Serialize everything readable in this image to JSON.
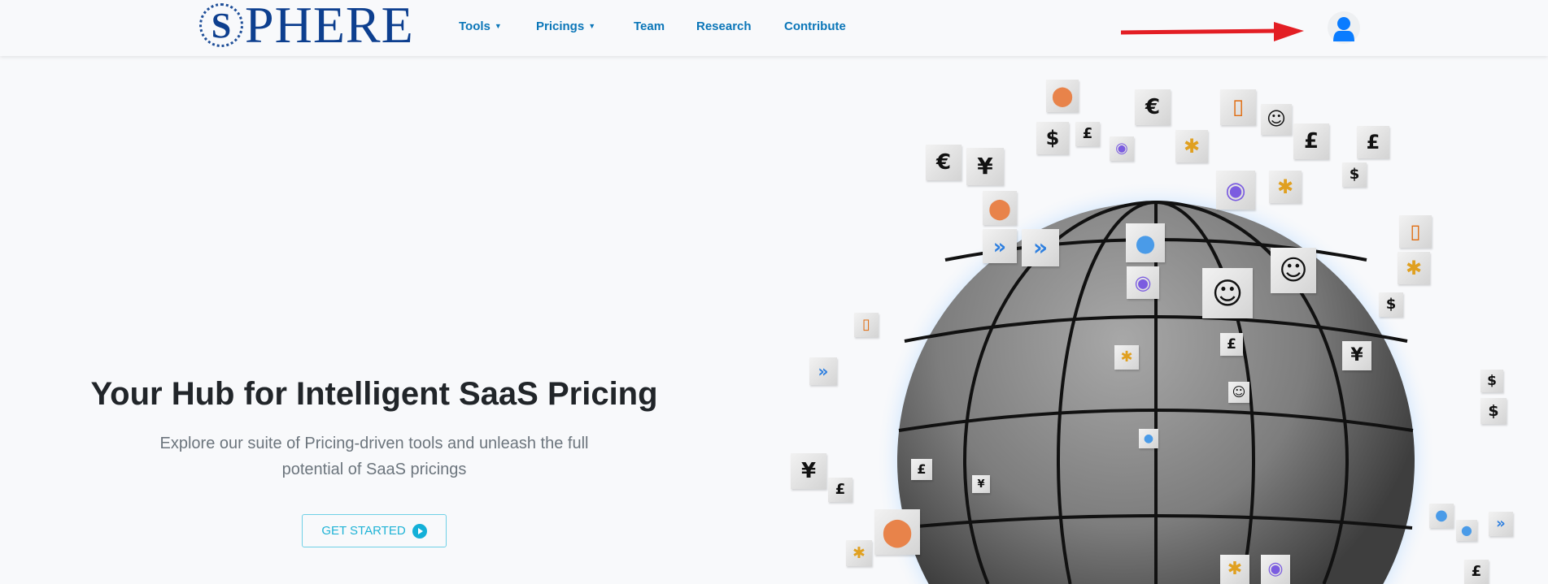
{
  "brand": {
    "logo_letter": "S",
    "logo_rest": "PHERE"
  },
  "nav": {
    "items": [
      {
        "label": "Tools",
        "dropdown": true
      },
      {
        "label": "Pricings",
        "dropdown": true
      },
      {
        "label": "Team",
        "dropdown": false
      },
      {
        "label": "Research",
        "dropdown": false
      },
      {
        "label": "Contribute",
        "dropdown": false
      }
    ],
    "user_icon": "user-icon",
    "annotation_arrow_color": "#e31e24"
  },
  "hero": {
    "title": "Your Hub for Intelligent SaaS Pricing",
    "subtitle_line1": "Explore our suite of Pricing-driven tools and unleash the full",
    "subtitle_line2": "potential of SaaS pricings",
    "cta_label": "GET STARTED"
  },
  "colors": {
    "brand": "#0d3f8f",
    "nav_link": "#0b76b8",
    "accent": "#14b0d8",
    "user_icon": "#0a7cff"
  },
  "floating_icons": [
    "$",
    "€",
    "¥",
    "£",
    "zoom-icon",
    "canva-icon",
    "slack-icon",
    "github-icon",
    "office-icon",
    "jira-icon",
    "postman-icon"
  ]
}
